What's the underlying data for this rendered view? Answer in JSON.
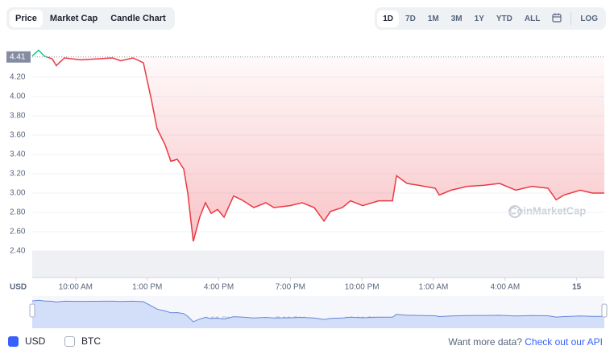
{
  "tabs": [
    "Price",
    "Market Cap",
    "Candle Chart"
  ],
  "ranges": [
    "1D",
    "7D",
    "1M",
    "3M",
    "1Y",
    "YTD",
    "ALL"
  ],
  "log_label": "LOG",
  "watermark": "CoinMarketCap",
  "chart_data": {
    "type": "line",
    "currency_label": "USD",
    "reference": 4.41,
    "x": [
      8.18,
      8.45,
      8.68,
      9.02,
      9.19,
      9.53,
      10.2,
      10.88,
      11.55,
      11.89,
      12.4,
      12.84,
      12.97,
      13.18,
      13.41,
      13.75,
      13.99,
      14.26,
      14.53,
      14.7,
      14.93,
      15.2,
      15.44,
      15.68,
      15.95,
      16.22,
      16.62,
      16.96,
      17.47,
      17.97,
      18.31,
      18.99,
      19.49,
      20.0,
      20.41,
      20.68,
      21.18,
      21.52,
      22.03,
      22.7,
      23.28,
      23.45,
      23.89,
      24.39,
      25.07,
      25.24,
      25.74,
      26.42,
      27.09,
      27.77,
      28.45,
      29.12,
      29.8,
      30.14,
      30.47,
      31.15,
      31.66,
      32.16
    ],
    "series": [
      {
        "name": "Price",
        "color": "#ea3943",
        "up_color": "#16c784",
        "values": [
          4.42,
          4.48,
          4.42,
          4.39,
          4.32,
          4.4,
          4.38,
          4.39,
          4.4,
          4.37,
          4.4,
          4.35,
          4.2,
          3.96,
          3.67,
          3.5,
          3.33,
          3.35,
          3.25,
          3.0,
          2.5,
          2.75,
          2.9,
          2.79,
          2.83,
          2.75,
          2.97,
          2.93,
          2.85,
          2.9,
          2.85,
          2.87,
          2.9,
          2.85,
          2.71,
          2.81,
          2.85,
          2.92,
          2.87,
          2.92,
          2.92,
          3.18,
          3.1,
          3.08,
          3.05,
          2.98,
          3.03,
          3.07,
          3.08,
          3.1,
          3.03,
          3.07,
          3.05,
          2.93,
          2.98,
          3.03,
          3.0,
          3.0
        ]
      }
    ],
    "xlim": [
      8.18,
      32.16
    ],
    "xticks": [
      {
        "value": 10,
        "label": "10:00 AM"
      },
      {
        "value": 13,
        "label": "1:00 PM"
      },
      {
        "value": 16,
        "label": "4:00 PM"
      },
      {
        "value": 19,
        "label": "7:00 PM"
      },
      {
        "value": 22,
        "label": "10:00 PM"
      },
      {
        "value": 25,
        "label": "1:00 AM"
      },
      {
        "value": 28,
        "label": "4:00 AM"
      },
      {
        "value": 31,
        "label": "15"
      }
    ],
    "ylim": [
      2.125,
      4.5
    ],
    "yticks": [
      {
        "value": 2.4,
        "label": "2.40"
      },
      {
        "value": 2.6,
        "label": "2.60"
      },
      {
        "value": 2.8,
        "label": "2.80"
      },
      {
        "value": 3.0,
        "label": "3.00"
      },
      {
        "value": 3.2,
        "label": "3.20"
      },
      {
        "value": 3.4,
        "label": "3.40"
      },
      {
        "value": 3.6,
        "label": "3.60"
      },
      {
        "value": 3.8,
        "label": "3.80"
      },
      {
        "value": 4.0,
        "label": "4.00"
      },
      {
        "value": 4.2,
        "label": "4.20"
      }
    ],
    "grid": true
  },
  "footer": {
    "options": [
      "USD",
      "BTC"
    ],
    "prompt": "Want more data?",
    "link": "Check out our API"
  }
}
